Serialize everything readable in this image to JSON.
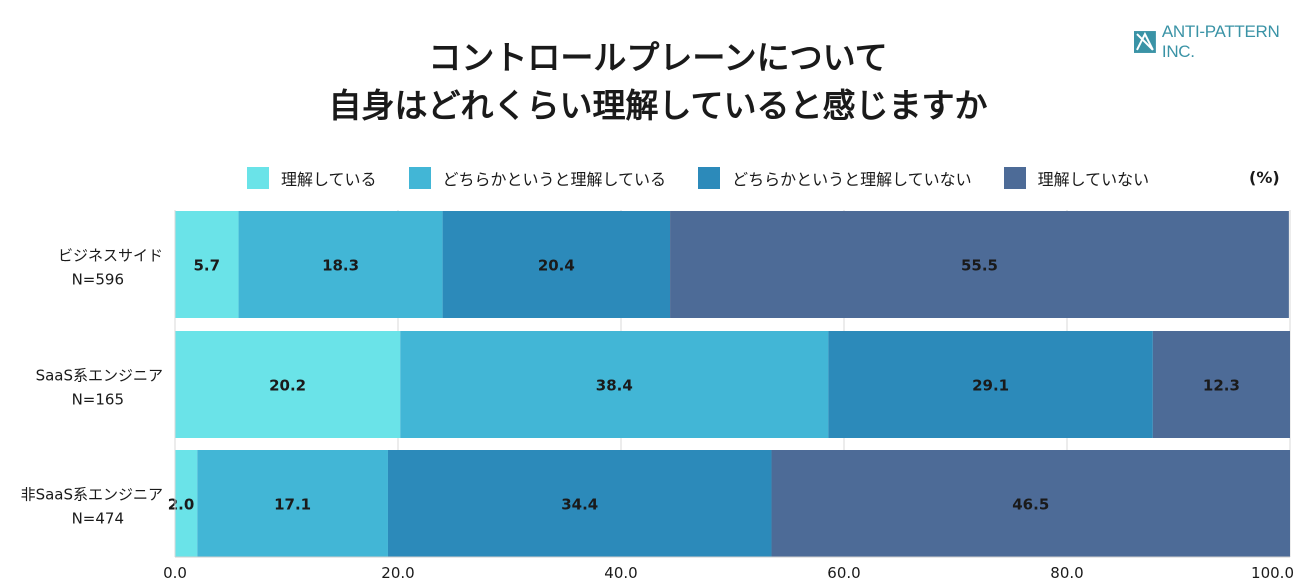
{
  "brand": {
    "logo_text": "ANTI-PATTERN INC.",
    "logo_icon": "anti-pattern-mark-icon"
  },
  "title": {
    "line1": "コントロールプレーンについて",
    "line2": "自身はどれくらい理解していると感じますか"
  },
  "unit_label": "(%)",
  "chart_data": {
    "type": "bar",
    "orientation": "horizontal",
    "stacked": true,
    "title": "コントロールプレーンについて 自身はどれくらい理解していると感じますか",
    "categories": [
      {
        "name": "ビジネスサイド",
        "n": "N=596"
      },
      {
        "name": "SaaS系エンジニア",
        "n": "N=165"
      },
      {
        "name": "非SaaS系エンジニア",
        "n": "N=474"
      }
    ],
    "series": [
      {
        "name": "理解している",
        "color": "#6ae3e8",
        "values": [
          5.7,
          20.2,
          2.0
        ]
      },
      {
        "name": "どちらかというと理解している",
        "color": "#42b6d6",
        "values": [
          18.3,
          38.4,
          17.1
        ]
      },
      {
        "name": "どちらかというと理解していない",
        "color": "#2c8aba",
        "values": [
          20.4,
          29.1,
          34.4
        ]
      },
      {
        "name": "理解していない",
        "color": "#4d6b97",
        "values": [
          55.5,
          12.3,
          46.5
        ]
      }
    ],
    "xlim": [
      0,
      100
    ],
    "xticks": [
      "0.0",
      "20.0",
      "40.0",
      "60.0",
      "80.0",
      "100.0"
    ],
    "grid": true,
    "legend_position": "top",
    "data_label_color": "#1a1a1a"
  }
}
